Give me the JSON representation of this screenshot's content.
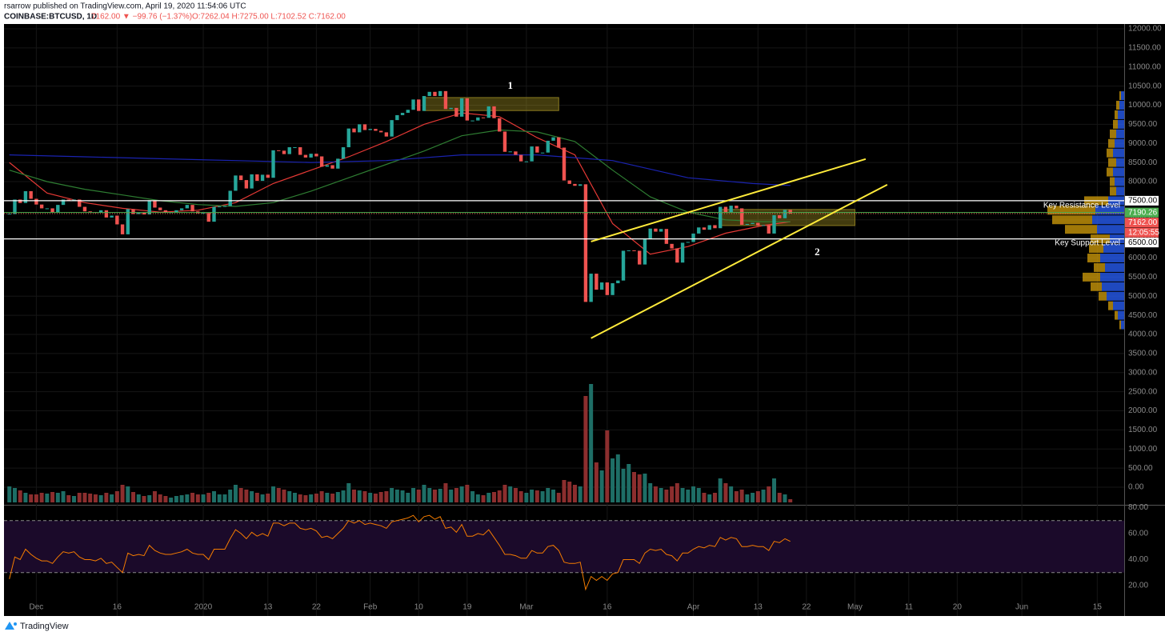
{
  "header": {
    "author": "rsarrow published on TradingView.com, April 19, 2020 11:54:06 UTC",
    "symbol": "COINBASE:BTCUSD, 1D",
    "quote": "7162.00 ▼ −99.76 (−1.37%)",
    "ohlc": "O:7262.04 H:7275.00 L:7102.52 C:7162.00"
  },
  "footer": {
    "brand": "TradingView"
  },
  "chart_data": {
    "type": "candlestick",
    "xlim": [
      "2019-11-25",
      "2020-06-20"
    ],
    "ylim": [
      -440,
      12126
    ],
    "yticks": [
      {
        "value": 0,
        "label": "0.00"
      },
      {
        "value": 500,
        "label": "500.00"
      },
      {
        "value": 1000,
        "label": "1000.00"
      },
      {
        "value": 1500,
        "label": "1500.00"
      },
      {
        "value": 2000,
        "label": "2000.00"
      },
      {
        "value": 2500,
        "label": "2500.00"
      },
      {
        "value": 3000,
        "label": "3000.00"
      },
      {
        "value": 3500,
        "label": "3500.00"
      },
      {
        "value": 4000,
        "label": "4000.00"
      },
      {
        "value": 4500,
        "label": "4500.00"
      },
      {
        "value": 5000,
        "label": "5000.00"
      },
      {
        "value": 5500,
        "label": "5500.00"
      },
      {
        "value": 6000,
        "label": "6000.00"
      },
      {
        "value": 6500,
        "label": "6500.00"
      },
      {
        "value": 7000,
        "label": "7000.00"
      },
      {
        "value": 7500,
        "label": "7500.00"
      },
      {
        "value": 8000,
        "label": "8000.00"
      },
      {
        "value": 8500,
        "label": "8500.00"
      },
      {
        "value": 9000,
        "label": "9000.00"
      },
      {
        "value": 9500,
        "label": "9500.00"
      },
      {
        "value": 10000,
        "label": "10000.00"
      },
      {
        "value": 10500,
        "label": "10500.00"
      },
      {
        "value": 11000,
        "label": "11000.00"
      },
      {
        "value": 11500,
        "label": "11500.00"
      },
      {
        "value": 12000,
        "label": "12000.00"
      }
    ],
    "xticks": [
      {
        "value": "2019-12-01",
        "label": "Dec"
      },
      {
        "value": "2019-12-16",
        "label": "16"
      },
      {
        "value": "2020-01-01",
        "label": "2020"
      },
      {
        "value": "2020-01-13",
        "label": "13"
      },
      {
        "value": "2020-01-22",
        "label": "22"
      },
      {
        "value": "2020-02-01",
        "label": "Feb"
      },
      {
        "value": "2020-02-10",
        "label": "10"
      },
      {
        "value": "2020-02-19",
        "label": "19"
      },
      {
        "value": "2020-03-01",
        "label": "Mar"
      },
      {
        "value": "2020-03-16",
        "label": "16"
      },
      {
        "value": "2020-04-01",
        "label": "Apr"
      },
      {
        "value": "2020-04-13",
        "label": "13"
      },
      {
        "value": "2020-04-22",
        "label": "22"
      },
      {
        "value": "2020-05-01",
        "label": "May"
      },
      {
        "value": "2020-05-11",
        "label": "11"
      },
      {
        "value": "2020-05-20",
        "label": "20"
      },
      {
        "value": "2020-06-01",
        "label": "Jun"
      },
      {
        "value": "2020-06-15",
        "label": "15"
      }
    ],
    "up_color": "#26a69a",
    "down_color": "#ef5350",
    "x": [
      "2019-11-26",
      "2019-11-27",
      "2019-11-28",
      "2019-11-29",
      "2019-11-30",
      "2019-12-01",
      "2019-12-02",
      "2019-12-03",
      "2019-12-04",
      "2019-12-05",
      "2019-12-06",
      "2019-12-07",
      "2019-12-08",
      "2019-12-09",
      "2019-12-10",
      "2019-12-11",
      "2019-12-12",
      "2019-12-13",
      "2019-12-14",
      "2019-12-15",
      "2019-12-16",
      "2019-12-17",
      "2019-12-18",
      "2019-12-19",
      "2019-12-20",
      "2019-12-21",
      "2019-12-22",
      "2019-12-23",
      "2019-12-24",
      "2019-12-25",
      "2019-12-26",
      "2019-12-27",
      "2019-12-28",
      "2019-12-29",
      "2019-12-30",
      "2019-12-31",
      "2020-01-01",
      "2020-01-02",
      "2020-01-03",
      "2020-01-04",
      "2020-01-05",
      "2020-01-06",
      "2020-01-07",
      "2020-01-08",
      "2020-01-09",
      "2020-01-10",
      "2020-01-11",
      "2020-01-12",
      "2020-01-13",
      "2020-01-14",
      "2020-01-15",
      "2020-01-16",
      "2020-01-17",
      "2020-01-18",
      "2020-01-19",
      "2020-01-20",
      "2020-01-21",
      "2020-01-22",
      "2020-01-23",
      "2020-01-24",
      "2020-01-25",
      "2020-01-26",
      "2020-01-27",
      "2020-01-28",
      "2020-01-29",
      "2020-01-30",
      "2020-01-31",
      "2020-02-01",
      "2020-02-02",
      "2020-02-03",
      "2020-02-04",
      "2020-02-05",
      "2020-02-06",
      "2020-02-07",
      "2020-02-08",
      "2020-02-09",
      "2020-02-10",
      "2020-02-11",
      "2020-02-12",
      "2020-02-13",
      "2020-02-14",
      "2020-02-15",
      "2020-02-16",
      "2020-02-17",
      "2020-02-18",
      "2020-02-19",
      "2020-02-20",
      "2020-02-21",
      "2020-02-22",
      "2020-02-23",
      "2020-02-24",
      "2020-02-25",
      "2020-02-26",
      "2020-02-27",
      "2020-02-28",
      "2020-02-29",
      "2020-03-01",
      "2020-03-02",
      "2020-03-03",
      "2020-03-04",
      "2020-03-05",
      "2020-03-06",
      "2020-03-07",
      "2020-03-08",
      "2020-03-09",
      "2020-03-10",
      "2020-03-11",
      "2020-03-12",
      "2020-03-13",
      "2020-03-14",
      "2020-03-15",
      "2020-03-16",
      "2020-03-17",
      "2020-03-18",
      "2020-03-19",
      "2020-03-20",
      "2020-03-21",
      "2020-03-22",
      "2020-03-23",
      "2020-03-24",
      "2020-03-25",
      "2020-03-26",
      "2020-03-27",
      "2020-03-28",
      "2020-03-29",
      "2020-03-30",
      "2020-03-31",
      "2020-04-01",
      "2020-04-02",
      "2020-04-03",
      "2020-04-04",
      "2020-04-05",
      "2020-04-06",
      "2020-04-07",
      "2020-04-08",
      "2020-04-09",
      "2020-04-10",
      "2020-04-11",
      "2020-04-12",
      "2020-04-13",
      "2020-04-14",
      "2020-04-15",
      "2020-04-16",
      "2020-04-17",
      "2020-04-18",
      "2020-04-19"
    ],
    "close": [
      7150,
      7530,
      7440,
      7750,
      7550,
      7400,
      7300,
      7300,
      7200,
      7390,
      7530,
      7500,
      7530,
      7340,
      7220,
      7200,
      7190,
      7250,
      7060,
      7110,
      6880,
      6620,
      7280,
      7150,
      7190,
      7140,
      7510,
      7320,
      7250,
      7200,
      7200,
      7250,
      7300,
      7390,
      7220,
      7170,
      7180,
      6950,
      7340,
      7350,
      7360,
      7760,
      8160,
      8040,
      7820,
      8190,
      8020,
      8180,
      8100,
      8820,
      8810,
      8720,
      8900,
      8900,
      8700,
      8630,
      8730,
      8660,
      8390,
      8430,
      8340,
      8600,
      8900,
      9390,
      9290,
      9500,
      9350,
      9380,
      9330,
      9290,
      9180,
      9610,
      9740,
      9800,
      9880,
      10150,
      9850,
      10240,
      10350,
      10240,
      10370,
      9900,
      9930,
      9700,
      10180,
      9600,
      9600,
      9680,
      9670,
      9970,
      9660,
      9310,
      8780,
      8790,
      8700,
      8530,
      8530,
      8920,
      8760,
      8760,
      9070,
      9160,
      8890,
      8030,
      7940,
      7890,
      7930,
      4850,
      5590,
      5170,
      5360,
      5030,
      5340,
      5410,
      6190,
      6200,
      6190,
      5830,
      6490,
      6770,
      6690,
      6760,
      6370,
      6250,
      5880,
      6400,
      6420,
      6640,
      6800,
      6740,
      6860,
      6780,
      7340,
      7200,
      7370,
      7300,
      6870,
      6890,
      6920,
      6850,
      6860,
      6640,
      7120,
      7040,
      7260,
      7162
    ],
    "volume_ylim": [
      0,
      150
    ],
    "volume": [
      20,
      18,
      15,
      12,
      10,
      10,
      12,
      11,
      13,
      12,
      14,
      9,
      8,
      12,
      12,
      11,
      10,
      9,
      12,
      10,
      14,
      22,
      20,
      13,
      10,
      8,
      9,
      14,
      10,
      8,
      6,
      8,
      9,
      10,
      12,
      10,
      10,
      12,
      14,
      10,
      10,
      16,
      22,
      18,
      16,
      14,
      12,
      10,
      11,
      20,
      18,
      16,
      14,
      12,
      10,
      9,
      10,
      11,
      14,
      12,
      11,
      13,
      15,
      24,
      16,
      15,
      14,
      12,
      11,
      13,
      14,
      18,
      16,
      15,
      12,
      18,
      16,
      22,
      18,
      16,
      17,
      24,
      16,
      18,
      20,
      22,
      14,
      10,
      9,
      12,
      13,
      15,
      22,
      20,
      18,
      14,
      12,
      16,
      15,
      14,
      18,
      16,
      12,
      28,
      26,
      22,
      20,
      133,
      148,
      50,
      40,
      90,
      55,
      60,
      42,
      48,
      38,
      35,
      36,
      24,
      20,
      18,
      16,
      20,
      24,
      18,
      16,
      20,
      18,
      12,
      10,
      12,
      30,
      24,
      20,
      14,
      16,
      10,
      12,
      14,
      16,
      20,
      30,
      12,
      10,
      4
    ],
    "rsi_ylim": [
      -3.4,
      81.5
    ],
    "rsi_yticks": [
      {
        "value": 20,
        "label": "20.00"
      },
      {
        "value": 40,
        "label": "40.00"
      },
      {
        "value": 60,
        "label": "60.00"
      },
      {
        "value": 80,
        "label": "80.00"
      }
    ],
    "rsi_bands": [
      70,
      30
    ],
    "rsi_color": "#f57c00",
    "rsi": [
      25,
      42,
      40,
      48,
      44,
      41,
      39,
      39,
      37,
      42,
      46,
      45,
      46,
      42,
      40,
      40,
      39,
      41,
      37,
      38,
      34,
      30,
      45,
      43,
      44,
      43,
      51,
      47,
      45,
      44,
      44,
      45,
      46,
      48,
      45,
      44,
      44,
      40,
      48,
      48,
      48,
      56,
      63,
      60,
      56,
      61,
      58,
      60,
      58,
      68,
      68,
      66,
      68,
      68,
      64,
      63,
      64,
      62,
      57,
      58,
      56,
      60,
      64,
      70,
      68,
      70,
      67,
      68,
      67,
      66,
      64,
      69,
      70,
      71,
      72,
      74,
      69,
      73,
      74,
      71,
      73,
      64,
      65,
      61,
      67,
      58,
      58,
      60,
      59,
      63,
      57,
      51,
      44,
      44,
      43,
      41,
      41,
      47,
      45,
      45,
      50,
      51,
      47,
      38,
      37,
      37,
      38,
      17,
      27,
      24,
      27,
      24,
      29,
      30,
      40,
      40,
      40,
      37,
      45,
      48,
      47,
      48,
      44,
      43,
      39,
      45,
      45,
      48,
      50,
      49,
      51,
      50,
      57,
      55,
      57,
      56,
      50,
      50,
      51,
      50,
      50,
      47,
      54,
      53,
      56,
      54
    ],
    "moving_averages": [
      {
        "color": "#e53935",
        "x": [
          "2019-11-26",
          "2019-12-03",
          "2019-12-10",
          "2019-12-17",
          "2019-12-24",
          "2019-12-31",
          "2020-01-07",
          "2020-01-14",
          "2020-01-21",
          "2020-01-28",
          "2020-02-04",
          "2020-02-11",
          "2020-02-18",
          "2020-02-25",
          "2020-03-03",
          "2020-03-10",
          "2020-03-17",
          "2020-03-24",
          "2020-03-31",
          "2020-04-07",
          "2020-04-14",
          "2020-04-19"
        ],
        "values": [
          8500,
          7700,
          7450,
          7300,
          7200,
          7250,
          7450,
          7950,
          8300,
          8650,
          9050,
          9500,
          9800,
          9700,
          9150,
          8700,
          6900,
          6100,
          6300,
          6650,
          6850,
          6950
        ]
      },
      {
        "color": "#2e7d32",
        "x": [
          "2019-11-26",
          "2019-12-03",
          "2019-12-10",
          "2019-12-17",
          "2019-12-24",
          "2019-12-31",
          "2020-01-07",
          "2020-01-14",
          "2020-01-21",
          "2020-01-28",
          "2020-02-04",
          "2020-02-11",
          "2020-02-18",
          "2020-02-25",
          "2020-03-03",
          "2020-03-10",
          "2020-03-17",
          "2020-03-24",
          "2020-03-31",
          "2020-04-07",
          "2020-04-14",
          "2020-04-19"
        ],
        "values": [
          8300,
          8000,
          7800,
          7650,
          7500,
          7400,
          7350,
          7450,
          7750,
          8100,
          8450,
          8800,
          9200,
          9350,
          9300,
          9050,
          8300,
          7600,
          7200,
          7000,
          6950,
          6950
        ]
      },
      {
        "color": "#1a23b0",
        "x": [
          "2019-11-26",
          "2019-12-10",
          "2019-12-24",
          "2020-01-07",
          "2020-01-21",
          "2020-02-04",
          "2020-02-18",
          "2020-03-03",
          "2020-03-17",
          "2020-03-31",
          "2020-04-12",
          "2020-04-19"
        ],
        "values": [
          8700,
          8650,
          8600,
          8550,
          8500,
          8550,
          8700,
          8700,
          8550,
          8100,
          7950,
          7900
        ]
      }
    ],
    "levels": [
      {
        "value": 7500,
        "label": "7500.00",
        "color": "#ffffff"
      },
      {
        "value": 7190.26,
        "label": "7190.26",
        "color": "#4caf50"
      },
      {
        "value": 7162,
        "label": "7162.00",
        "color": "#ef5350"
      },
      {
        "value": 6500,
        "label": "6500.00",
        "color": "#ffffff"
      }
    ],
    "countdown": "12:05:55",
    "level_notes": [
      "Key Resistance Level",
      "Key Support Level"
    ],
    "trendlines": [
      {
        "from": [
          "2020-03-13",
          6430
        ],
        "to": [
          "2020-05-03",
          8590
        ]
      },
      {
        "from": [
          "2020-03-13",
          3900
        ],
        "to": [
          "2020-05-07",
          7920
        ]
      }
    ],
    "zones": [
      {
        "from": "2020-02-11",
        "to": "2020-03-07",
        "top": 10200,
        "bottom": 9860
      },
      {
        "from": "2020-04-06",
        "to": "2020-05-01",
        "top": 7270,
        "bottom": 6850
      }
    ],
    "annotations": [
      {
        "text": "1",
        "x": "2020-02-27",
        "y": 10490
      },
      {
        "text": "2",
        "x": "2020-04-24",
        "y": 6140
      }
    ],
    "volume_profile": {
      "prices": [
        4250,
        4500,
        4750,
        5000,
        5250,
        5500,
        5750,
        6000,
        6250,
        6500,
        6750,
        7000,
        7250,
        7500,
        7750,
        8000,
        8250,
        8500,
        8750,
        9000,
        9250,
        9500,
        9750,
        10000,
        10250
      ],
      "up": [
        4,
        8,
        14,
        22,
        28,
        30,
        24,
        30,
        26,
        18,
        34,
        40,
        36,
        20,
        10,
        12,
        14,
        10,
        14,
        12,
        10,
        8,
        8,
        6,
        4
      ],
      "down": [
        2,
        4,
        6,
        10,
        14,
        22,
        14,
        16,
        18,
        24,
        40,
        50,
        60,
        30,
        8,
        6,
        8,
        10,
        8,
        8,
        8,
        6,
        4,
        4,
        2
      ]
    }
  }
}
